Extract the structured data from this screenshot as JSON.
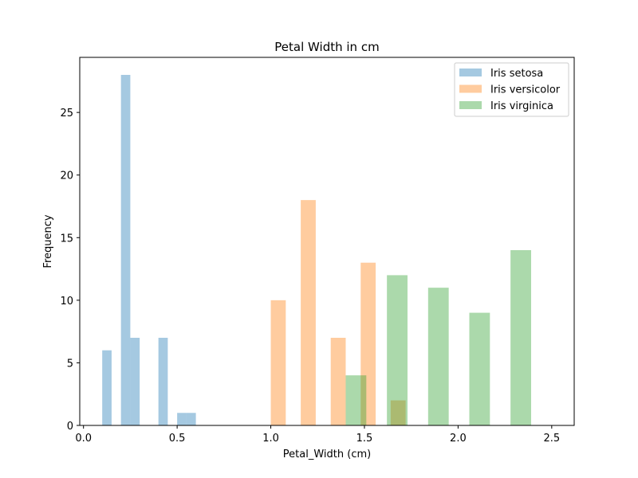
{
  "chart_data": {
    "type": "histogram",
    "title": "Petal Width in cm",
    "xlabel": "Petal_Width (cm)",
    "ylabel": "Frequency",
    "xlim": [
      -0.02,
      2.62
    ],
    "ylim": [
      0,
      29.4
    ],
    "x_ticks": [
      0.0,
      0.5,
      1.0,
      1.5,
      2.0,
      2.5
    ],
    "x_tick_labels": [
      "0.0",
      "0.5",
      "1.0",
      "1.5",
      "2.0",
      "2.5"
    ],
    "y_ticks": [
      0,
      5,
      10,
      15,
      20,
      25
    ],
    "y_tick_labels": [
      "0",
      "5",
      "10",
      "15",
      "20",
      "25"
    ],
    "grid": false,
    "legend_position": "top-right",
    "bar_opacity": 0.4,
    "series": [
      {
        "name": "Iris setosa",
        "color": "#1f77b4",
        "bin_edges": [
          0.1,
          0.15,
          0.2,
          0.25,
          0.3,
          0.35,
          0.4,
          0.45,
          0.5,
          0.55,
          0.6
        ],
        "counts": [
          6,
          0,
          28,
          7,
          0,
          0,
          7,
          0,
          1,
          1
        ]
      },
      {
        "name": "Iris versicolor",
        "color": "#ff7f0e",
        "bin_edges": [
          1.0,
          1.08,
          1.16,
          1.24,
          1.32,
          1.4,
          1.48,
          1.56,
          1.64,
          1.72,
          1.8
        ],
        "counts": [
          10,
          0,
          18,
          0,
          7,
          0,
          13,
          0,
          2,
          0
        ]
      },
      {
        "name": "Iris virginica",
        "color": "#2ca02c",
        "bin_edges": [
          1.4,
          1.51,
          1.62,
          1.73,
          1.84,
          1.95,
          2.06,
          2.17,
          2.28,
          2.39,
          2.5
        ],
        "counts": [
          4,
          0,
          12,
          0,
          11,
          0,
          9,
          0,
          14,
          0
        ]
      }
    ]
  }
}
